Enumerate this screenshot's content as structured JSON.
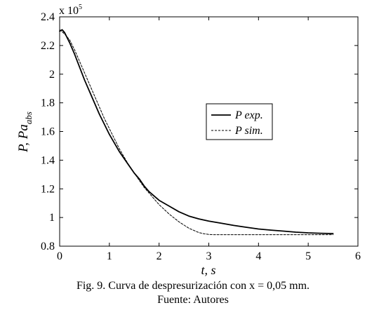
{
  "chart_data": {
    "type": "line",
    "xlabel": "t, s",
    "ylabel": {
      "main": "P, Pa",
      "subscript": "abs"
    },
    "y_multiplier": {
      "base": "x 10",
      "exponent": "5"
    },
    "xlim": [
      0,
      6
    ],
    "ylim": [
      0.8,
      2.4
    ],
    "x_ticks": [
      {
        "value": 0,
        "label": "0"
      },
      {
        "value": 1,
        "label": "1"
      },
      {
        "value": 2,
        "label": "2"
      },
      {
        "value": 3,
        "label": "3"
      },
      {
        "value": 4,
        "label": "4"
      },
      {
        "value": 5,
        "label": "5"
      },
      {
        "value": 6,
        "label": "6"
      }
    ],
    "y_ticks": [
      {
        "value": 0.8,
        "label": "0.8"
      },
      {
        "value": 1.0,
        "label": "1"
      },
      {
        "value": 1.2,
        "label": "1.2"
      },
      {
        "value": 1.4,
        "label": "1.4"
      },
      {
        "value": 1.6,
        "label": "1.6"
      },
      {
        "value": 1.8,
        "label": "1.8"
      },
      {
        "value": 2.0,
        "label": "2"
      },
      {
        "value": 2.2,
        "label": "2.2"
      },
      {
        "value": 2.4,
        "label": "2.4"
      }
    ],
    "grid": false,
    "legend_position": "center-right",
    "series": [
      {
        "name": "P exp.",
        "style": "solid",
        "color": "#000000",
        "x": [
          0,
          0.05,
          0.1,
          0.2,
          0.3,
          0.4,
          0.5,
          0.6,
          0.7,
          0.8,
          0.9,
          1.0,
          1.1,
          1.2,
          1.3,
          1.4,
          1.5,
          1.6,
          1.7,
          1.8,
          1.9,
          2.0,
          2.2,
          2.4,
          2.6,
          2.8,
          3.0,
          3.25,
          3.5,
          3.75,
          4.0,
          4.25,
          4.5,
          4.75,
          5.0,
          5.25,
          5.5
        ],
        "values": [
          2.3,
          2.31,
          2.29,
          2.22,
          2.14,
          2.05,
          1.96,
          1.88,
          1.8,
          1.72,
          1.65,
          1.58,
          1.52,
          1.46,
          1.41,
          1.36,
          1.31,
          1.27,
          1.22,
          1.18,
          1.15,
          1.12,
          1.08,
          1.04,
          1.01,
          0.99,
          0.975,
          0.96,
          0.945,
          0.932,
          0.92,
          0.912,
          0.905,
          0.898,
          0.893,
          0.89,
          0.888
        ]
      },
      {
        "name": "P sim.",
        "style": "dashed",
        "color": "#000000",
        "x": [
          0,
          0.1,
          0.2,
          0.3,
          0.4,
          0.5,
          0.6,
          0.7,
          0.8,
          0.9,
          1.0,
          1.1,
          1.2,
          1.3,
          1.4,
          1.5,
          1.6,
          1.7,
          1.8,
          1.9,
          2.0,
          2.2,
          2.4,
          2.6,
          2.8,
          2.9,
          3.0,
          3.1,
          3.3,
          3.5,
          4.0,
          4.5,
          5.0,
          5.5
        ],
        "values": [
          2.31,
          2.28,
          2.24,
          2.17,
          2.09,
          2.01,
          1.93,
          1.85,
          1.77,
          1.69,
          1.62,
          1.55,
          1.48,
          1.42,
          1.36,
          1.31,
          1.26,
          1.21,
          1.17,
          1.13,
          1.09,
          1.025,
          0.97,
          0.925,
          0.895,
          0.887,
          0.882,
          0.88,
          0.88,
          0.88,
          0.88,
          0.88,
          0.88,
          0.88
        ]
      }
    ]
  },
  "caption": {
    "line1": "Fig. 9. Curva de despresurización con x = 0,05 mm.",
    "line2": "Fuente: Autores"
  }
}
